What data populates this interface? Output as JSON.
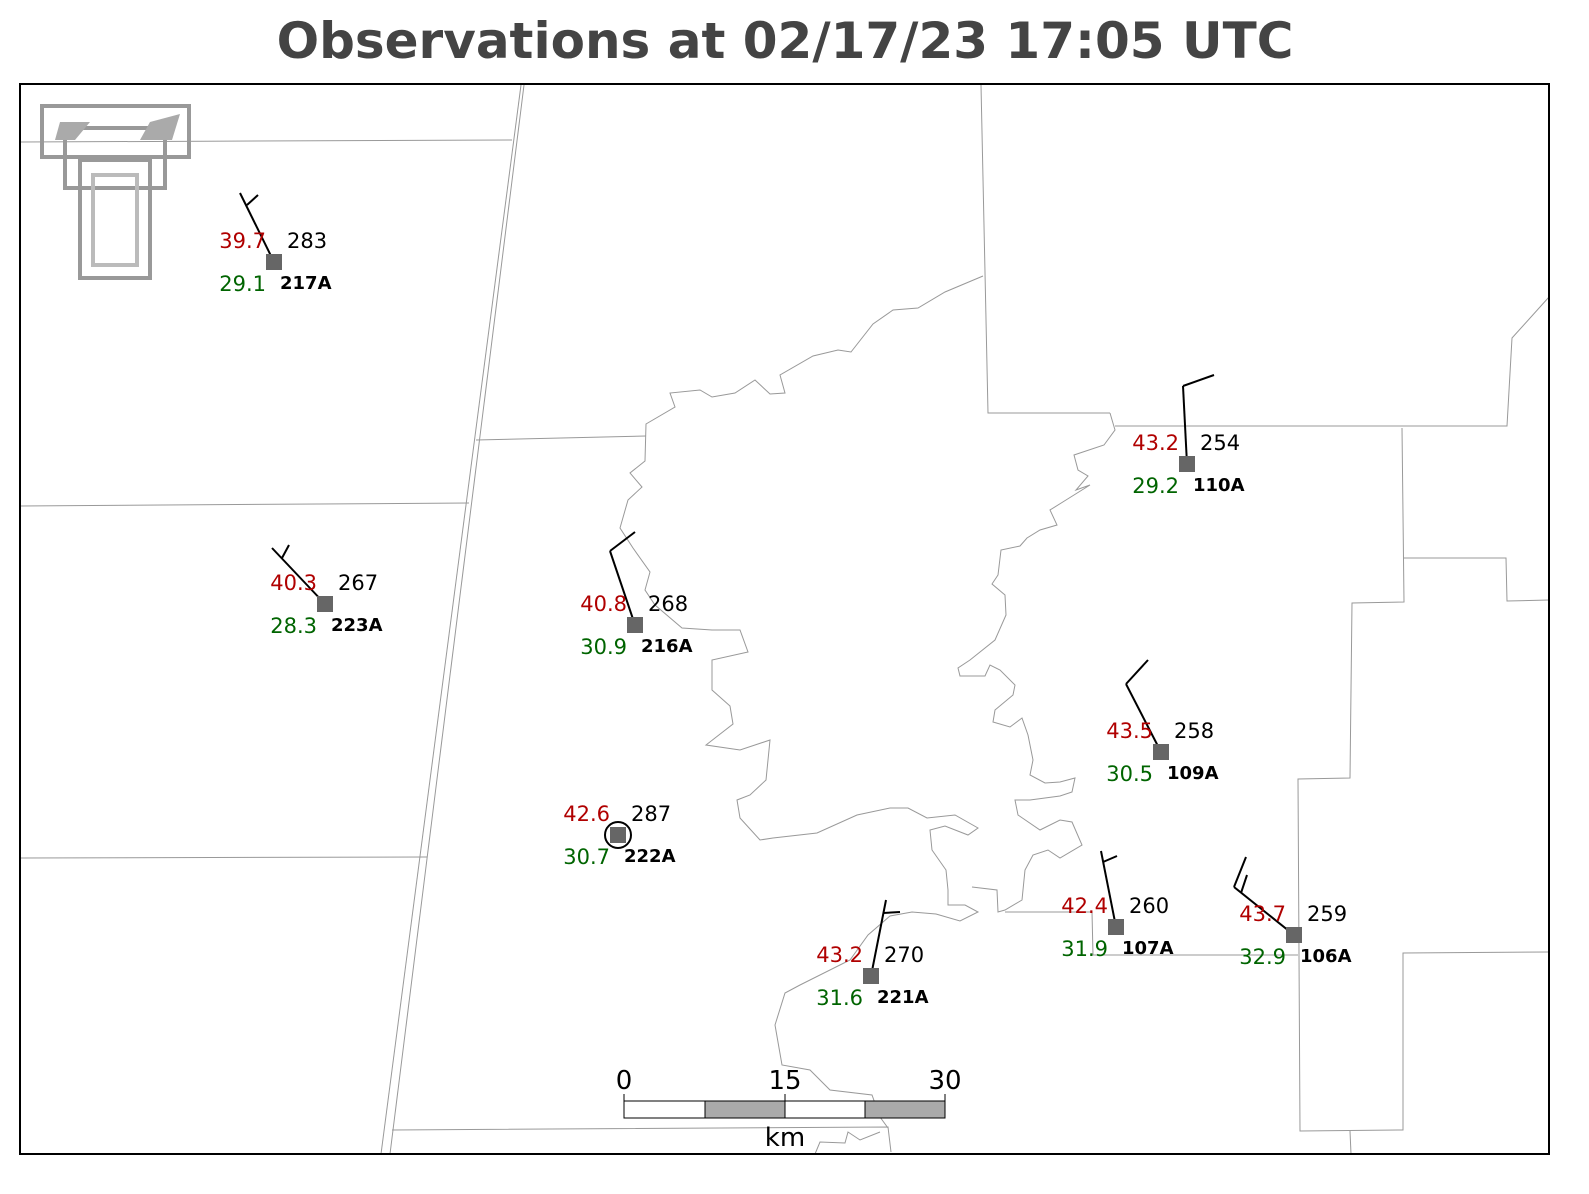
{
  "title": "Observations at 02/17/23 17:05 UTC",
  "stations": [
    {
      "id": "217A",
      "temperature": "39.7",
      "dewpoint": "29.1",
      "value": "283"
    },
    {
      "id": "223A",
      "temperature": "40.3",
      "dewpoint": "28.3",
      "value": "267"
    },
    {
      "id": "216A",
      "temperature": "40.8",
      "dewpoint": "30.9",
      "value": "268"
    },
    {
      "id": "222A",
      "temperature": "42.6",
      "dewpoint": "30.7",
      "value": "287"
    },
    {
      "id": "110A",
      "temperature": "43.2",
      "dewpoint": "29.2",
      "value": "254"
    },
    {
      "id": "109A",
      "temperature": "43.5",
      "dewpoint": "30.5",
      "value": "258"
    },
    {
      "id": "221A",
      "temperature": "43.2",
      "dewpoint": "31.6",
      "value": "270"
    },
    {
      "id": "107A",
      "temperature": "42.4",
      "dewpoint": "31.9",
      "value": "260"
    },
    {
      "id": "106A",
      "temperature": "43.7",
      "dewpoint": "32.9",
      "value": "259"
    }
  ],
  "scale_bar": {
    "ticks": [
      "0",
      "15",
      "30"
    ],
    "unit": "km"
  }
}
